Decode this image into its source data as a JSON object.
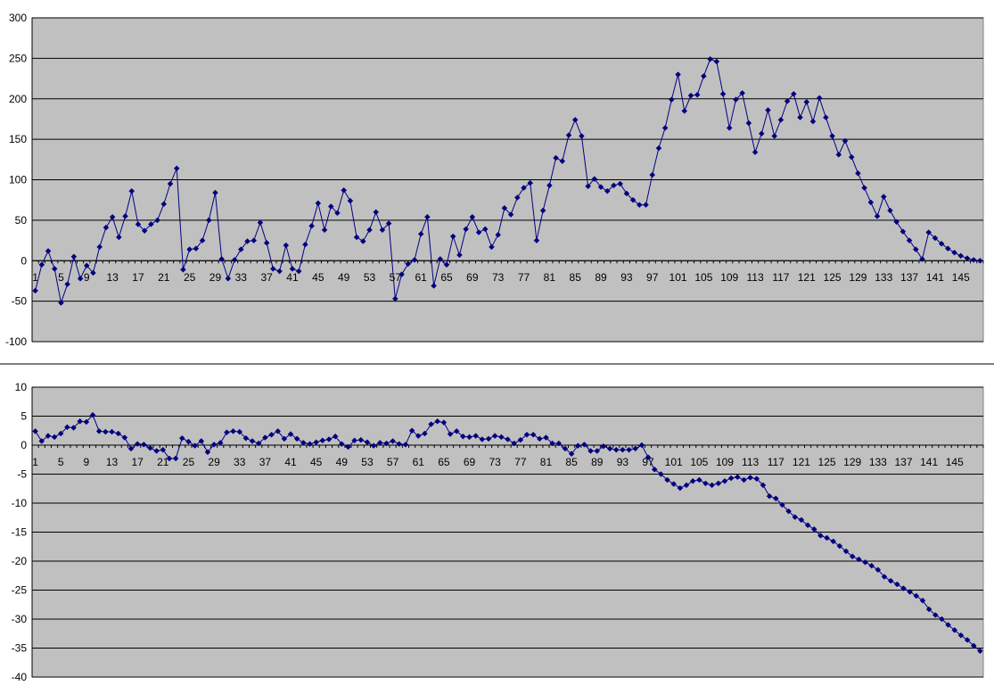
{
  "chart_data": [
    {
      "type": "line",
      "title": "",
      "xlabel": "",
      "ylabel": "",
      "ylim": [
        -100,
        300
      ],
      "yticks": [
        -100,
        -50,
        0,
        50,
        100,
        150,
        200,
        250,
        300
      ],
      "x_tick_labels": [
        "1",
        "5",
        "9",
        "13",
        "17",
        "21",
        "25",
        "29",
        "33",
        "37",
        "41",
        "45",
        "49",
        "53",
        "57",
        "61",
        "65",
        "69",
        "73",
        "77",
        "81",
        "85",
        "89",
        "93",
        "97",
        "101",
        "105",
        "109",
        "113",
        "117",
        "121",
        "125",
        "129",
        "133",
        "137",
        "141",
        "145"
      ],
      "grid": true,
      "plot_background": "#c0c0c0",
      "series": [
        {
          "color": "#000080",
          "marker": "diamond",
          "values": [
            -37,
            -5,
            12,
            -10,
            -52,
            -29,
            5,
            -22,
            -6,
            -15,
            17,
            41,
            54,
            29,
            55,
            86,
            45,
            37,
            45,
            50,
            70,
            95,
            114,
            -11,
            14,
            15,
            25,
            50,
            84,
            2,
            -22,
            1,
            14,
            24,
            25,
            47,
            22,
            -10,
            -13,
            19,
            -10,
            -13,
            20,
            43,
            71,
            38,
            67,
            59,
            87,
            74,
            29,
            24,
            38,
            60,
            38,
            46,
            -47,
            -17,
            -4,
            1,
            33,
            54,
            -31,
            2,
            -5,
            30,
            7,
            39,
            54,
            35,
            39,
            17,
            32,
            65,
            57,
            78,
            90,
            96,
            25,
            62,
            93,
            127,
            123,
            155,
            174,
            154,
            92,
            101,
            91,
            86,
            93,
            95,
            83,
            75,
            69,
            69,
            106,
            139,
            164,
            199,
            230,
            185,
            204,
            205,
            228,
            249,
            246,
            206,
            164,
            199,
            207,
            170,
            134,
            157,
            186,
            154,
            174,
            197,
            206,
            177,
            196,
            172,
            201,
            177,
            154,
            131,
            148,
            128,
            108,
            90,
            72,
            55,
            79,
            62,
            48,
            36,
            25,
            14,
            2,
            35,
            28,
            21,
            15,
            10,
            6,
            3,
            1,
            0
          ]
        }
      ]
    },
    {
      "type": "line",
      "title": "",
      "xlabel": "",
      "ylabel": "",
      "ylim": [
        -40,
        10
      ],
      "yticks": [
        -40,
        -35,
        -30,
        -25,
        -20,
        -15,
        -10,
        -5,
        0,
        5,
        10
      ],
      "x_tick_labels": [
        "1",
        "5",
        "9",
        "13",
        "17",
        "21",
        "25",
        "29",
        "33",
        "37",
        "41",
        "45",
        "49",
        "53",
        "57",
        "61",
        "65",
        "69",
        "73",
        "77",
        "81",
        "85",
        "89",
        "93",
        "97",
        "101",
        "105",
        "109",
        "113",
        "117",
        "121",
        "125",
        "129",
        "133",
        "137",
        "141",
        "145"
      ],
      "grid": true,
      "plot_background": "#c0c0c0",
      "series": [
        {
          "color": "#000080",
          "marker": "diamond",
          "values": [
            2.4,
            0.7,
            1.6,
            1.4,
            2.0,
            3.1,
            3.0,
            4.1,
            4.0,
            5.2,
            2.4,
            2.3,
            2.3,
            2.0,
            1.3,
            -0.6,
            0.2,
            0.1,
            -0.5,
            -1.0,
            -0.8,
            -2.3,
            -2.3,
            1.2,
            0.6,
            -0.1,
            0.7,
            -1.2,
            0.1,
            0.4,
            2.2,
            2.4,
            2.3,
            1.2,
            0.7,
            0.3,
            1.3,
            1.8,
            2.4,
            1.1,
            1.9,
            1.1,
            0.4,
            0.2,
            0.5,
            0.8,
            1.0,
            1.5,
            0.2,
            -0.3,
            0.8,
            0.9,
            0.5,
            -0.1,
            0.4,
            0.3,
            0.7,
            0.2,
            0.1,
            2.5,
            1.6,
            2.0,
            3.6,
            4.1,
            3.9,
            1.9,
            2.4,
            1.5,
            1.4,
            1.6,
            1.0,
            1.1,
            1.6,
            1.4,
            1.0,
            0.3,
            0.9,
            1.8,
            1.8,
            1.1,
            1.3,
            0.3,
            0.3,
            -0.6,
            -1.5,
            -0.1,
            0.1,
            -1.0,
            -1.0,
            -0.2,
            -0.6,
            -0.8,
            -0.8,
            -0.8,
            -0.6,
            0.0,
            -2.1,
            -4.2,
            -5.0,
            -6.0,
            -6.7,
            -7.4,
            -6.9,
            -6.2,
            -6.0,
            -6.6,
            -6.9,
            -6.6,
            -6.2,
            -5.7,
            -5.5,
            -6.0,
            -5.6,
            -5.8,
            -6.9,
            -8.8,
            -9.2,
            -10.3,
            -11.4,
            -12.4,
            -12.9,
            -13.8,
            -14.5,
            -15.6,
            -16.0,
            -16.6,
            -17.4,
            -18.3,
            -19.2,
            -19.7,
            -20.2,
            -20.8,
            -21.5,
            -22.7,
            -23.4,
            -24.0,
            -24.7,
            -25.3,
            -26.0,
            -26.8,
            -28.3,
            -29.3,
            -30.0,
            -31.0,
            -31.9,
            -32.8,
            -33.6,
            -34.6,
            -35.5
          ]
        }
      ]
    }
  ]
}
